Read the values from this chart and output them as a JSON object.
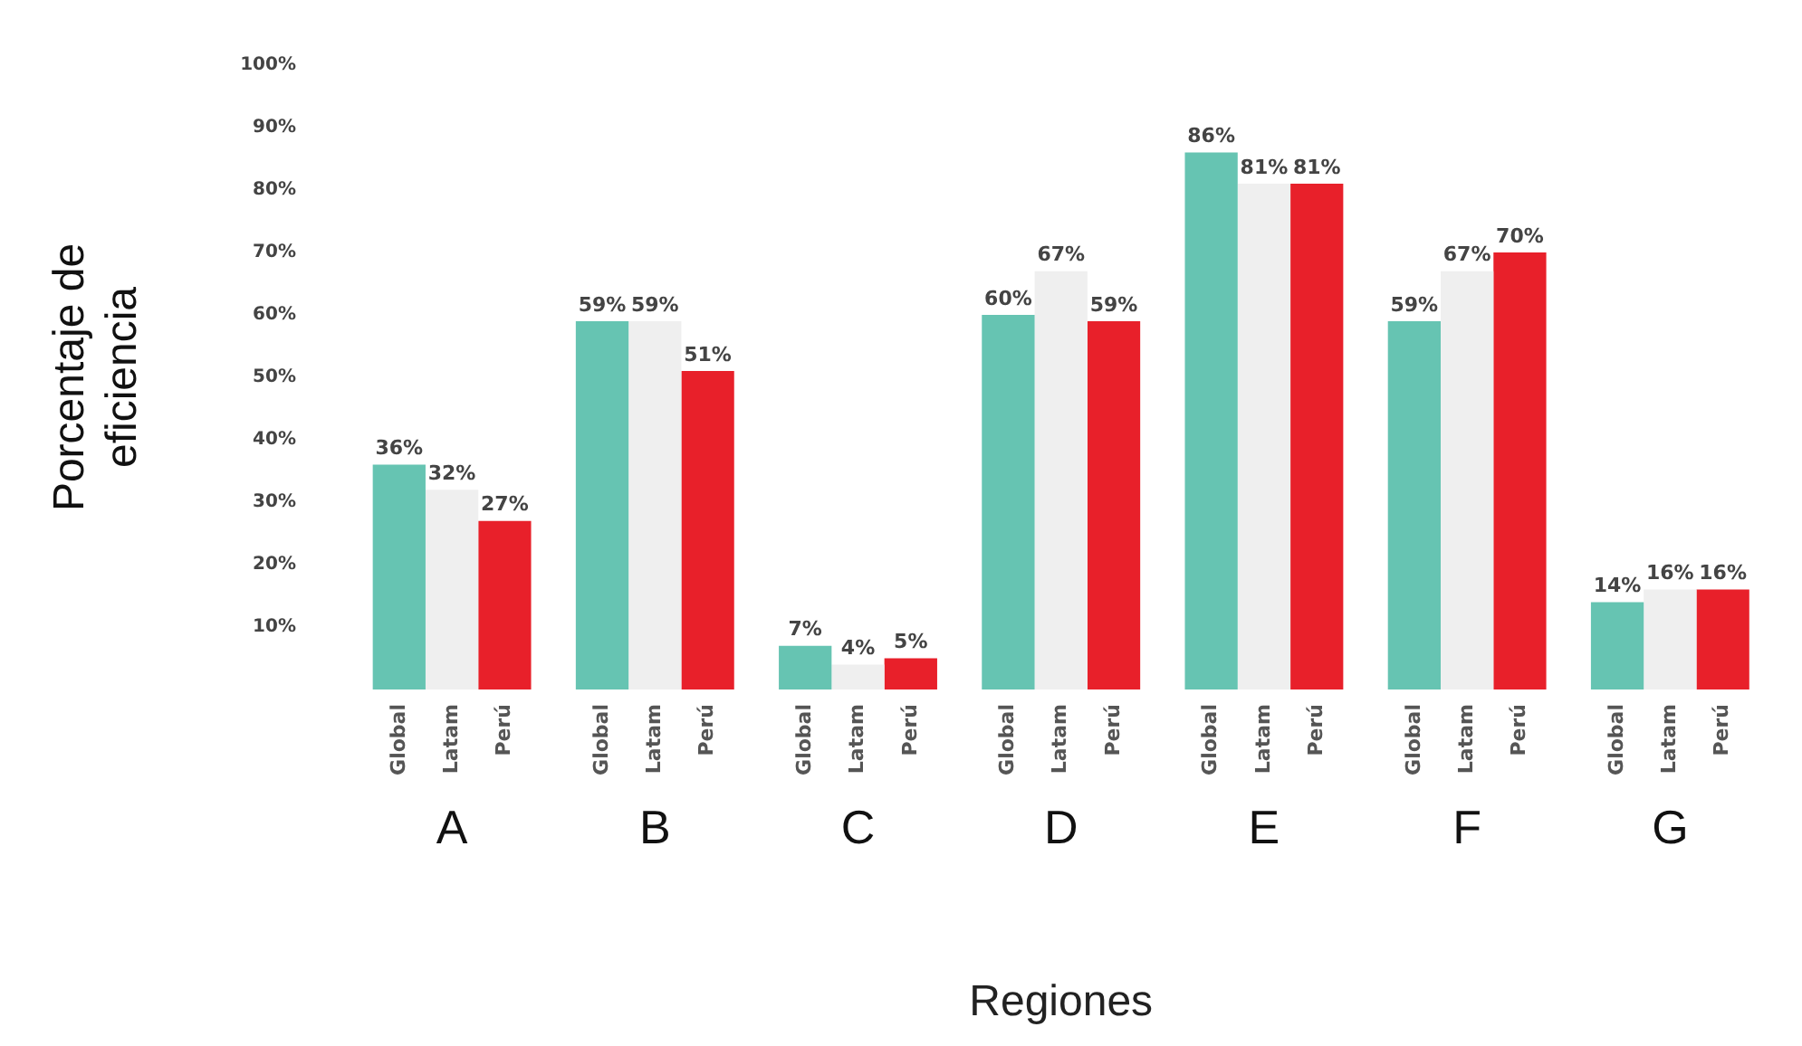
{
  "chart_data": {
    "type": "bar",
    "xlabel": "Regiones",
    "ylabel": "Porcentaje de eficiencia",
    "categories": [
      "A",
      "B",
      "C",
      "D",
      "E",
      "F",
      "G"
    ],
    "series": [
      {
        "name": "Global",
        "color": "#66c4b2",
        "values": [
          36,
          59,
          7,
          60,
          86,
          59,
          14
        ],
        "value_labels": [
          "36%",
          "59%",
          "7%",
          "60%",
          "86%",
          "59%",
          "14%"
        ]
      },
      {
        "name": "Latam",
        "color": "#efefef",
        "values": [
          32,
          59,
          4,
          67,
          81,
          67,
          16
        ],
        "value_labels": [
          "32%",
          "59%",
          "4%",
          "67%",
          "81%",
          "67%",
          "16%"
        ]
      },
      {
        "name": "Perú",
        "color": "#e8202a",
        "values": [
          27,
          51,
          5,
          59,
          81,
          70,
          16
        ],
        "value_labels": [
          "27%",
          "51%",
          "5%",
          "59%",
          "81%",
          "70%",
          "16%"
        ]
      }
    ],
    "ylim": [
      0,
      100
    ],
    "yticks": [
      {
        "value": 10,
        "label": "10%"
      },
      {
        "value": 20,
        "label": "20%"
      },
      {
        "value": 30,
        "label": "30%"
      },
      {
        "value": 40,
        "label": "40%"
      },
      {
        "value": 50,
        "label": "50%"
      },
      {
        "value": 60,
        "label": "60%"
      },
      {
        "value": 70,
        "label": "70%"
      },
      {
        "value": 80,
        "label": "80%"
      },
      {
        "value": 90,
        "label": "90%"
      },
      {
        "value": 100,
        "label": "100%"
      }
    ],
    "grid": false
  }
}
